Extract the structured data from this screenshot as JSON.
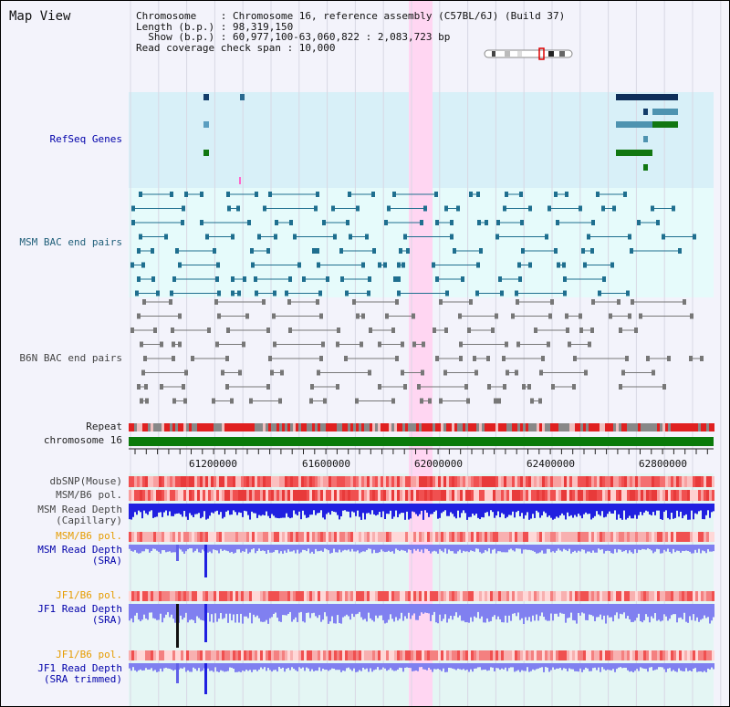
{
  "view": {
    "title": "Map View",
    "info_lines": [
      "Chromosome    : Chromosome 16, reference assembly (C57BL/6J) (Build 37)",
      "Length (b.p.) : 98,319,150",
      "  Show (b.p.) : 60,977,100-63,060,822 : 2,083,723 bp",
      "Read coverage check span : 10,000"
    ]
  },
  "tracks": {
    "refseq": "RefSeq Genes",
    "msm_bac": "MSM BAC end pairs",
    "b6n_bac": "B6N BAC end pairs",
    "repeat": "Repeat",
    "chromosome": "chromosome 16",
    "dbsnp": "dbSNP(Mouse)",
    "msm_b6_pol_1": "MSM/B6 pol.",
    "msm_depth_cap": "MSM Read Depth",
    "msm_depth_cap_sub": "(Capillary)",
    "msm_b6_pol_2": "MSM/B6 pol.",
    "msm_depth_sra": "MSM Read Depth",
    "msm_depth_sra_sub": "(SRA)",
    "jf1_b6_pol_1": "JF1/B6 pol.",
    "jf1_depth_sra": "JF1 Read Depth",
    "jf1_depth_sra_sub": "(SRA)",
    "jf1_b6_pol_2": "JF1/B6 pol.",
    "jf1_depth_trim": "JF1 Read Depth",
    "jf1_depth_trim_sub": "(SRA trimmed)"
  },
  "axis": {
    "ticks": [
      "61200000",
      "61600000",
      "62000000",
      "62400000",
      "62800000"
    ]
  },
  "colors": {
    "highlight": "#ffd6f2",
    "refseq_bg": "#d8f0f8",
    "msm_bac_bg": "#e6fbfb",
    "chromosome": "#0a7a0a",
    "dbsnp": "#f05050",
    "depth": "#2020e0",
    "depth_light": "#8080f0"
  }
}
